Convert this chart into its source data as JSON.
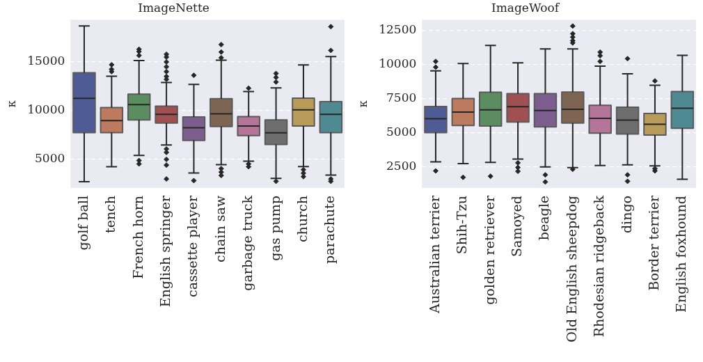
{
  "chart_data": [
    {
      "type": "box",
      "title": "ImageNette",
      "ylabel": "κ",
      "grid": "y",
      "categories": [
        "golf ball",
        "tench",
        "French horn",
        "English springer",
        "cassette player",
        "chain saw",
        "garbage truck",
        "gas pump",
        "church",
        "parachute"
      ],
      "colors": [
        "#4f5b95",
        "#bd7a5e",
        "#5b8d60",
        "#a05050",
        "#7c5e8e",
        "#7e6453",
        "#b5759b",
        "#6e6e6e",
        "#b99b59",
        "#4f8a93"
      ],
      "ylim": [
        2000,
        19350
      ],
      "yticks": [
        5000,
        10000,
        15000
      ],
      "marker": "diamond",
      "boxes": [
        {
          "low": 2640,
          "q1": 7710,
          "median": 11240,
          "q3": 13880,
          "high": 18710
        },
        {
          "low": 4190,
          "q1": 7710,
          "median": 8950,
          "q3": 10290,
          "high": 13520,
          "outliers": [
            14710,
            14240,
            14000
          ]
        },
        {
          "low": 5360,
          "q1": 9020,
          "median": 10600,
          "q3": 11670,
          "high": 15140,
          "outliers": [
            16310,
            16070,
            15670,
            4830,
            4480
          ]
        },
        {
          "low": 6430,
          "q1": 8690,
          "median": 9600,
          "q3": 10430,
          "high": 12880,
          "outliers": [
            15790,
            15500,
            15000,
            14500,
            14000,
            13500,
            13200,
            6020,
            5670,
            4950,
            4360,
            2930
          ]
        },
        {
          "low": 3550,
          "q1": 6900,
          "median": 8210,
          "q3": 9330,
          "high": 12690,
          "outliers": [
            13620,
            2760
          ]
        },
        {
          "low": 4400,
          "q1": 8330,
          "median": 9640,
          "q3": 11210,
          "high": 15170,
          "outliers": [
            16790,
            16020,
            15430,
            4000,
            3640,
            3290
          ]
        },
        {
          "low": 4760,
          "q1": 7400,
          "median": 8400,
          "q3": 9360,
          "high": 11950,
          "outliers": [
            12290,
            4480,
            4190
          ]
        },
        {
          "low": 2980,
          "q1": 6480,
          "median": 7690,
          "q3": 9020,
          "high": 12330,
          "outliers": [
            13810,
            13400,
            12930,
            2690
          ]
        },
        {
          "low": 4210,
          "q1": 8400,
          "median": 10070,
          "q3": 11260,
          "high": 14690,
          "outliers": [
            3880,
            3520,
            3170
          ]
        },
        {
          "low": 3330,
          "q1": 7710,
          "median": 9600,
          "q3": 10900,
          "high": 15550,
          "outliers": [
            18640,
            16190,
            2930,
            2690
          ]
        }
      ]
    },
    {
      "type": "box",
      "title": "ImageWoof",
      "ylabel": "κ",
      "grid": "y",
      "categories": [
        "Australian terrier",
        "Shih-Tzu",
        "golden retriever",
        "Samoyed",
        "beagle",
        "Old English sheepdog",
        "Rhodesian ridgeback",
        "dingo",
        "Border terrier",
        "English foxhound"
      ],
      "colors": [
        "#4f5b95",
        "#bd7a5e",
        "#5b8d60",
        "#a05050",
        "#7c5e8e",
        "#7e6453",
        "#b5759b",
        "#6e6e6e",
        "#b99b59",
        "#4f8a93"
      ],
      "ylim": [
        930,
        13250
      ],
      "yticks": [
        2500,
        5000,
        7500,
        10000,
        12500
      ],
      "marker": "diamond",
      "boxes": [
        {
          "low": 2840,
          "q1": 4980,
          "median": 6000,
          "q3": 6890,
          "high": 9510,
          "outliers": [
            10200,
            9780,
            2180
          ]
        },
        {
          "low": 2720,
          "q1": 5510,
          "median": 6490,
          "q3": 7480,
          "high": 10050,
          "outliers": [
            1710
          ]
        },
        {
          "low": 2800,
          "q1": 5470,
          "median": 6660,
          "q3": 7940,
          "high": 11370,
          "outliers": [
            1790
          ]
        },
        {
          "low": 3040,
          "q1": 5760,
          "median": 6880,
          "q3": 7840,
          "high": 10100,
          "outliers": [
            2770,
            2430,
            2150
          ]
        },
        {
          "low": 2470,
          "q1": 5410,
          "median": 6600,
          "q3": 7840,
          "high": 11110,
          "outliers": [
            1890,
            1370
          ]
        },
        {
          "low": 2420,
          "q1": 5680,
          "median": 6690,
          "q3": 7960,
          "high": 11110,
          "outliers": [
            12790,
            12230,
            11980,
            11720,
            11550,
            2300
          ]
        },
        {
          "low": 2580,
          "q1": 4950,
          "median": 6030,
          "q3": 6990,
          "high": 9860,
          "outliers": [
            10880,
            10620,
            10200
          ]
        },
        {
          "low": 2620,
          "q1": 4880,
          "median": 5900,
          "q3": 6840,
          "high": 9290,
          "outliers": [
            10400,
            1890,
            1420
          ]
        },
        {
          "low": 2550,
          "q1": 4800,
          "median": 5590,
          "q3": 6390,
          "high": 8450,
          "outliers": [
            8770,
            2350,
            2180
          ]
        },
        {
          "low": 1570,
          "q1": 5300,
          "median": 6770,
          "q3": 7990,
          "high": 10640
        }
      ]
    }
  ]
}
